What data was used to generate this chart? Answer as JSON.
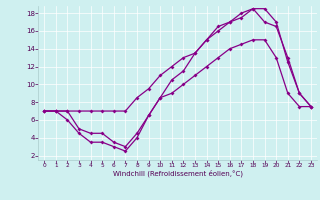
{
  "background_color": "#cff0f0",
  "line_color": "#880088",
  "xlim": [
    -0.5,
    23.5
  ],
  "ylim": [
    1.5,
    18.8
  ],
  "yticks": [
    2,
    4,
    6,
    8,
    10,
    12,
    14,
    16,
    18
  ],
  "xticks": [
    0,
    1,
    2,
    3,
    4,
    5,
    6,
    7,
    8,
    9,
    10,
    11,
    12,
    13,
    14,
    15,
    16,
    17,
    18,
    19,
    20,
    21,
    22,
    23
  ],
  "xlabel": "Windchill (Refroidissement éolien,°C)",
  "line1_x": [
    0,
    1,
    2,
    3,
    4,
    5,
    6,
    7,
    8,
    9,
    10,
    11,
    12,
    13,
    14,
    15,
    16,
    17,
    18,
    19,
    20,
    21,
    22,
    23
  ],
  "line1_y": [
    7,
    7,
    7,
    5,
    4.5,
    4.5,
    3.5,
    3,
    4.5,
    6.5,
    8.5,
    9,
    10,
    11,
    12,
    13,
    14,
    14.5,
    15,
    15,
    13,
    9,
    7.5,
    7.5
  ],
  "line2_x": [
    0,
    1,
    2,
    3,
    4,
    5,
    6,
    7,
    8,
    9,
    10,
    11,
    12,
    13,
    14,
    15,
    16,
    17,
    18,
    19,
    20,
    21,
    22,
    23
  ],
  "line2_y": [
    7,
    7,
    6,
    4.5,
    3.5,
    3.5,
    3,
    2.5,
    4,
    6.5,
    8.5,
    10.5,
    11.5,
    13.5,
    15,
    16.5,
    17,
    18,
    18.5,
    17,
    16.5,
    13,
    9,
    7.5
  ],
  "line3_x": [
    0,
    1,
    2,
    3,
    4,
    5,
    6,
    7,
    8,
    9,
    10,
    11,
    12,
    13,
    14,
    15,
    16,
    17,
    18,
    19,
    20,
    21,
    22,
    23
  ],
  "line3_y": [
    7,
    7,
    7,
    7,
    7,
    7,
    7,
    7,
    8.5,
    9.5,
    11,
    12,
    13,
    13.5,
    15,
    16,
    17,
    17.5,
    18.5,
    18.5,
    17,
    12.5,
    9,
    7.5
  ]
}
